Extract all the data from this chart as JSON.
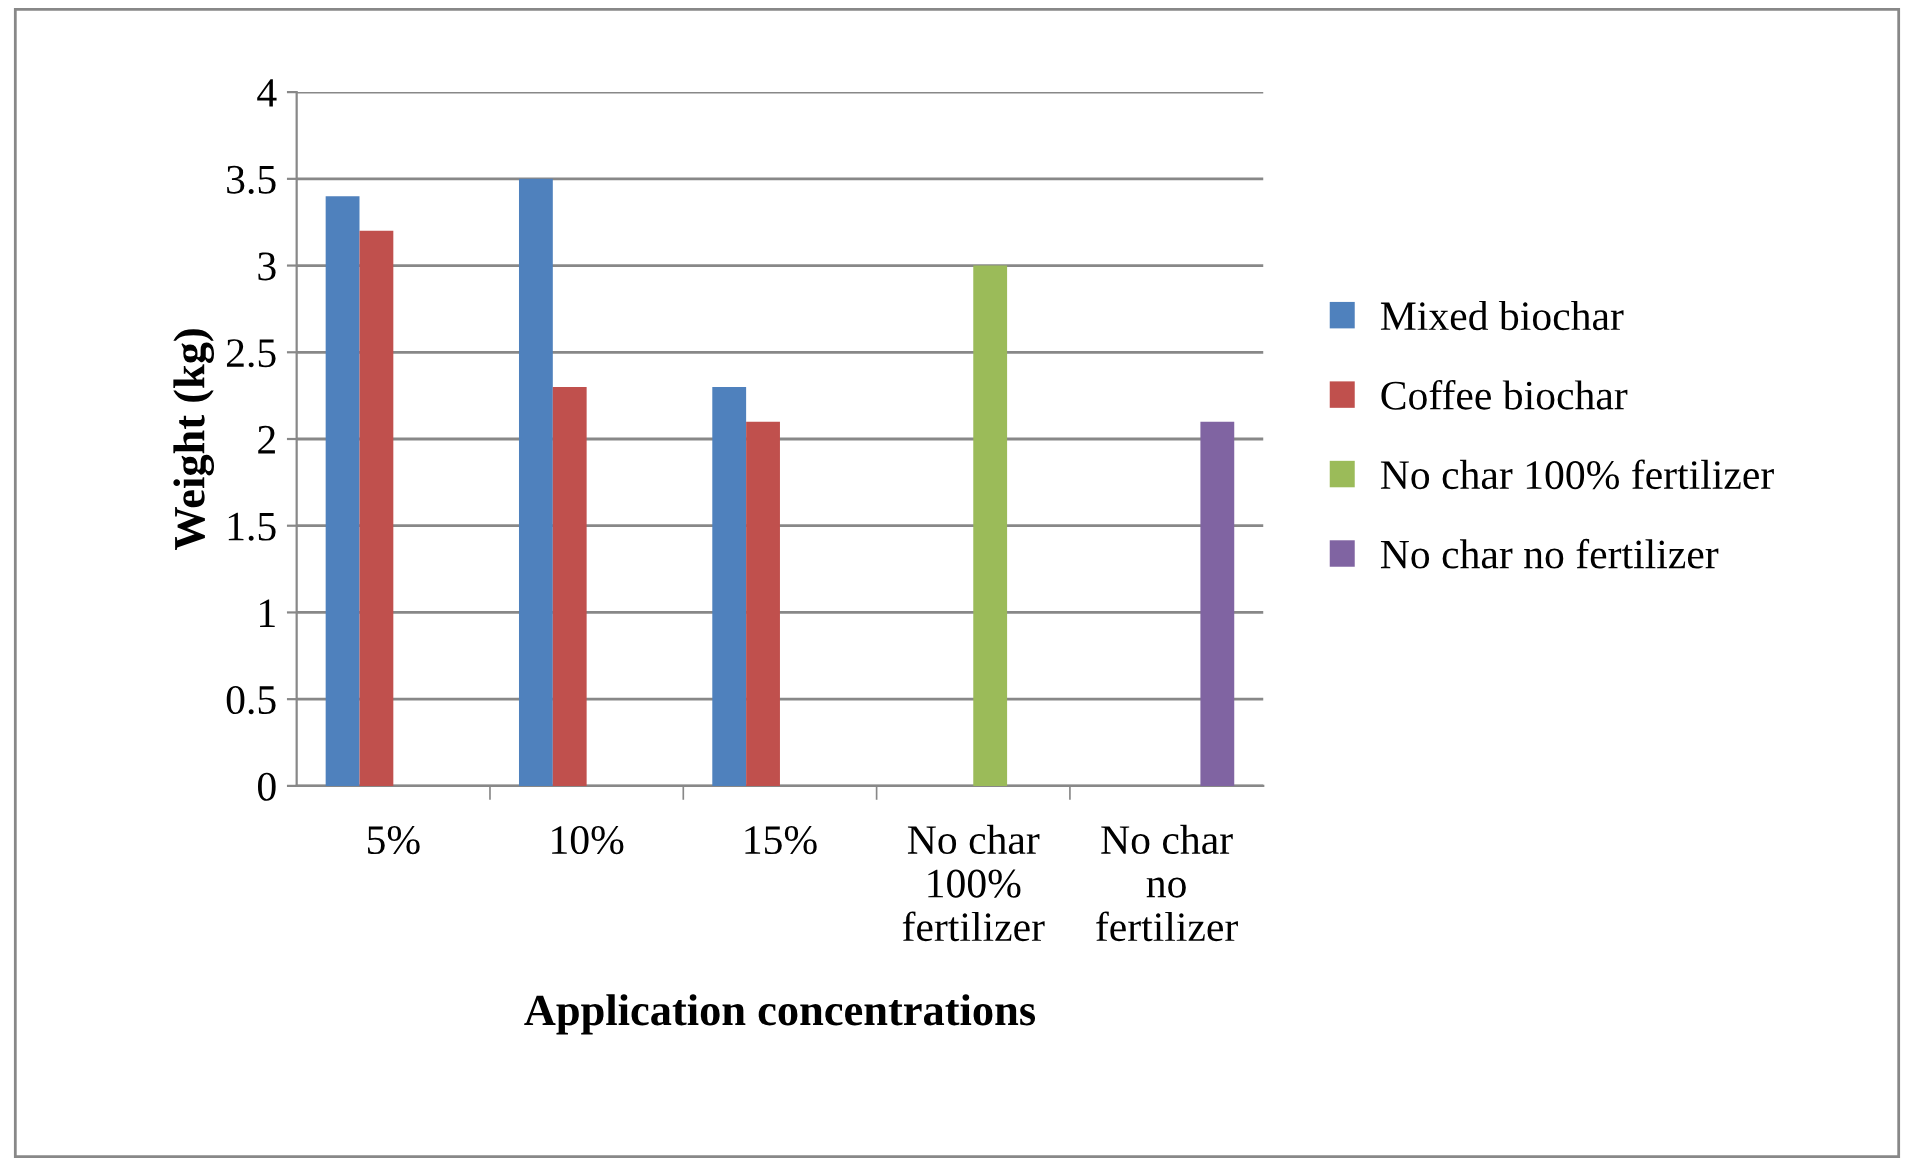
{
  "chart_data": {
    "type": "bar",
    "xlabel": "Application concentrations",
    "ylabel": "Weight (kg)",
    "categories": [
      "5%",
      "10%",
      "15%",
      "No char\n100%\nfertilizer",
      "No char\nno\nfertilizer"
    ],
    "series": [
      {
        "name": "Mixed biochar",
        "color": "#4f81bd",
        "values": [
          3.4,
          3.5,
          2.3,
          null,
          null
        ]
      },
      {
        "name": "Coffee biochar",
        "color": "#c0504d",
        "values": [
          3.2,
          2.3,
          2.1,
          null,
          null
        ]
      },
      {
        "name": "No char 100% fertilizer",
        "color": "#9bbb59",
        "values": [
          null,
          null,
          null,
          3.0,
          null
        ]
      },
      {
        "name": "No char no fertilizer",
        "color": "#8064a2",
        "values": [
          null,
          null,
          null,
          null,
          2.1
        ]
      }
    ],
    "ylim": [
      0,
      4
    ],
    "yticks": [
      0,
      0.5,
      1,
      1.5,
      2,
      2.5,
      3,
      3.5,
      4
    ],
    "grid": "y",
    "legend": "right"
  }
}
